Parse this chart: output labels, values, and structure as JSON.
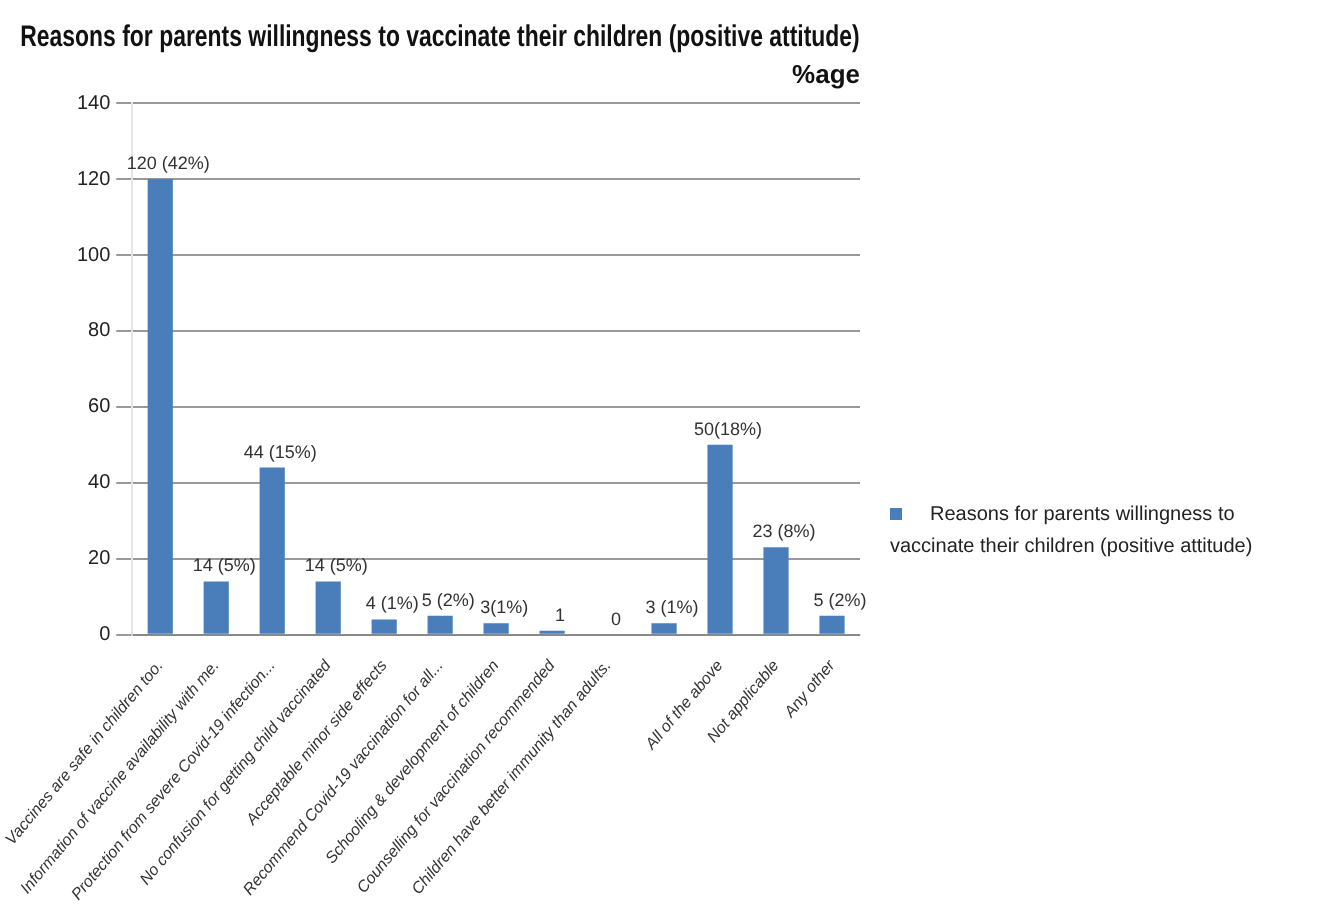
{
  "chart_data": {
    "type": "bar",
    "title": "Reasons for parents willingness to vaccinate their children (positive attitude)",
    "subtitle": "%age",
    "categories": [
      "Vaccines are safe in children too.",
      "Information of vaccine availability with me.",
      "Protection from severe Covid-19 infection...",
      "No confusion for getting child vaccinated",
      "Acceptable minor side effects",
      "Recommend Covid-19 vaccination for all...",
      "Schooling & development of children",
      "Counselling for vaccination recommended",
      "Children have better immunity than adults.",
      null,
      "All of the above",
      "Not applicable",
      "Any other"
    ],
    "series": [
      {
        "name": "Reasons for parents willingness to vaccinate their children (positive attitude)",
        "color": "#4a7ebb",
        "values": [
          120,
          14,
          44,
          14,
          4,
          5,
          3,
          1,
          0,
          3,
          50,
          23,
          5
        ],
        "value_labels": [
          "120 (42%)",
          "14 (5%)",
          "44 (15%)",
          "14 (5%)",
          "4 (1%)",
          "5 (2%)",
          "3(1%)",
          "1",
          "0",
          "3 (1%)",
          "50(18%)",
          "23 (8%)",
          "5 (2%)"
        ]
      }
    ],
    "ylim": [
      0,
      140
    ],
    "yticks": [
      0,
      20,
      40,
      60,
      80,
      100,
      120,
      140
    ],
    "grid": "y",
    "legend": "right"
  }
}
